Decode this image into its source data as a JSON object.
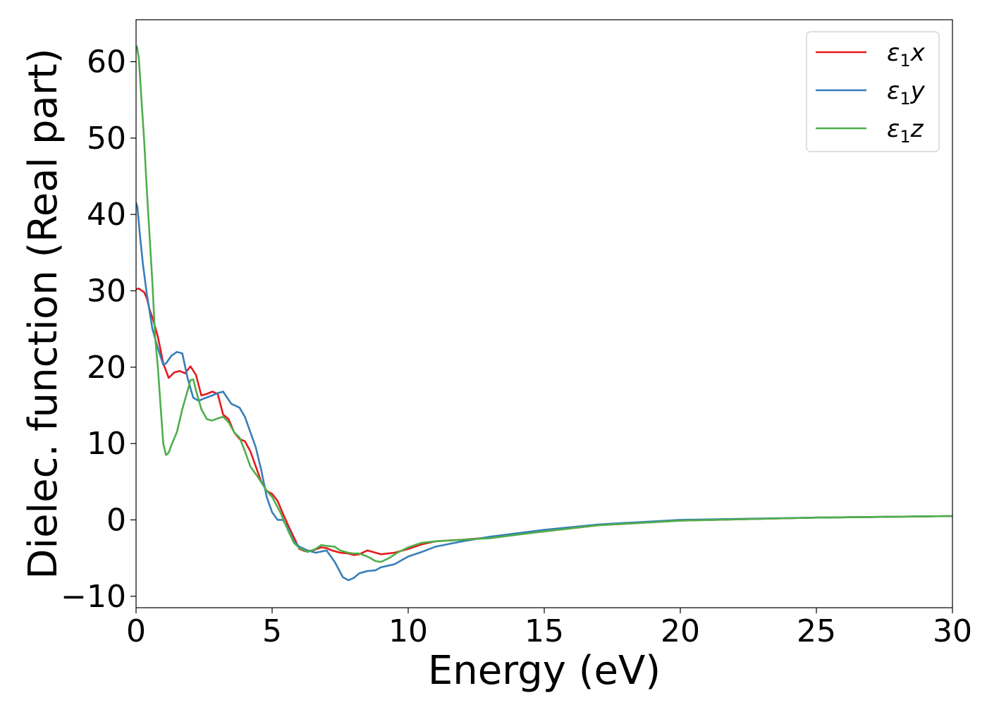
{
  "chart_data": {
    "type": "line",
    "xlabel": "Energy (eV)",
    "ylabel": "Dielec. function (Real part)",
    "xlim": [
      0,
      30
    ],
    "ylim": [
      -11.5,
      65.5
    ],
    "xticks": [
      0,
      5,
      10,
      15,
      20,
      25,
      30
    ],
    "yticks": [
      -10,
      0,
      10,
      20,
      30,
      40,
      50,
      60
    ],
    "grid": false,
    "legend_position": "top-right",
    "series": [
      {
        "name": "ε1x",
        "legend_base": "ε",
        "legend_sub": "1",
        "legend_tail": "x",
        "color": "#e41a1c",
        "x": [
          0,
          0.1,
          0.3,
          0.4,
          0.5,
          0.6,
          0.8,
          1.0,
          1.2,
          1.4,
          1.6,
          1.8,
          2.0,
          2.2,
          2.4,
          2.6,
          2.8,
          3.0,
          3.2,
          3.4,
          3.6,
          3.8,
          4.0,
          4.2,
          4.4,
          4.6,
          4.8,
          5.0,
          5.2,
          5.4,
          5.6,
          5.8,
          6.0,
          6.2,
          6.5,
          6.8,
          7.0,
          7.2,
          7.5,
          7.8,
          8.0,
          8.2,
          8.5,
          8.7,
          9.0,
          9.5,
          10.0,
          10.5,
          11.0,
          12.0,
          13.0,
          15.0,
          17.0,
          20.0,
          25.0,
          30.0
        ],
        "values": [
          30.2,
          30.3,
          29.8,
          29.0,
          27.5,
          26.5,
          24.0,
          20.5,
          18.6,
          19.3,
          19.5,
          19.2,
          20.1,
          19.0,
          16.3,
          16.5,
          16.8,
          16.5,
          13.8,
          13.2,
          11.5,
          10.6,
          10.3,
          9.0,
          7.0,
          5.0,
          3.8,
          3.4,
          2.5,
          0.8,
          -0.8,
          -2.3,
          -3.8,
          -4.1,
          -4.0,
          -3.6,
          -3.7,
          -4.0,
          -4.3,
          -4.4,
          -4.6,
          -4.5,
          -4.0,
          -4.2,
          -4.5,
          -4.3,
          -3.8,
          -3.2,
          -2.8,
          -2.6,
          -2.3,
          -1.5,
          -0.7,
          -0.1,
          0.3,
          0.5
        ]
      },
      {
        "name": "ε1y",
        "legend_base": "ε",
        "legend_sub": "1",
        "legend_tail": "y",
        "color": "#377eb8",
        "x": [
          0,
          0.05,
          0.15,
          0.25,
          0.4,
          0.6,
          0.8,
          1.0,
          1.1,
          1.3,
          1.5,
          1.7,
          1.9,
          2.1,
          2.3,
          2.5,
          2.8,
          3.0,
          3.2,
          3.5,
          3.8,
          4.0,
          4.2,
          4.4,
          4.6,
          4.8,
          5.0,
          5.2,
          5.4,
          5.6,
          5.8,
          6.0,
          6.3,
          6.6,
          7.0,
          7.3,
          7.6,
          7.8,
          8.0,
          8.2,
          8.5,
          8.8,
          9.0,
          9.5,
          10.0,
          10.5,
          11.0,
          12.0,
          13.0,
          15.0,
          17.0,
          20.0,
          25.0,
          30.0
        ],
        "values": [
          41.5,
          41.0,
          37.0,
          33.5,
          29.5,
          25.0,
          22.5,
          20.3,
          20.5,
          21.5,
          22.0,
          21.8,
          18.5,
          16.0,
          15.6,
          15.9,
          16.3,
          16.6,
          16.8,
          15.2,
          14.7,
          13.5,
          11.5,
          9.5,
          6.5,
          3.0,
          1.0,
          0.0,
          0.0,
          -1.2,
          -2.8,
          -3.5,
          -4.0,
          -4.3,
          -4.0,
          -5.5,
          -7.5,
          -7.9,
          -7.6,
          -7.0,
          -6.7,
          -6.6,
          -6.2,
          -5.8,
          -4.8,
          -4.2,
          -3.5,
          -2.8,
          -2.2,
          -1.3,
          -0.6,
          0.0,
          0.3,
          0.5
        ]
      },
      {
        "name": "ε1z",
        "legend_base": "ε",
        "legend_sub": "1",
        "legend_tail": "z",
        "color": "#4daf4a",
        "x": [
          0,
          0.03,
          0.1,
          0.2,
          0.3,
          0.4,
          0.5,
          0.6,
          0.7,
          0.8,
          0.9,
          1.0,
          1.1,
          1.2,
          1.3,
          1.5,
          1.7,
          1.9,
          2.0,
          2.1,
          2.2,
          2.4,
          2.6,
          2.8,
          3.0,
          3.2,
          3.4,
          3.6,
          3.8,
          4.0,
          4.2,
          4.5,
          4.8,
          5.0,
          5.3,
          5.6,
          5.8,
          6.0,
          6.3,
          6.6,
          6.8,
          7.0,
          7.3,
          7.5,
          7.8,
          8.0,
          8.2,
          8.5,
          8.8,
          9.0,
          9.3,
          9.6,
          10.0,
          10.5,
          11.0,
          12.0,
          13.0,
          15.0,
          17.0,
          20.0,
          25.0,
          30.0
        ],
        "values": [
          62.0,
          62.0,
          60.5,
          55.0,
          49.5,
          43.0,
          37.0,
          31.0,
          24.0,
          20.0,
          15.0,
          10.0,
          8.5,
          8.8,
          9.8,
          11.5,
          14.5,
          17.0,
          18.3,
          18.4,
          17.0,
          14.5,
          13.2,
          13.0,
          13.3,
          13.5,
          12.8,
          11.5,
          10.8,
          9.0,
          7.0,
          5.5,
          3.8,
          3.0,
          1.0,
          -1.5,
          -3.0,
          -3.7,
          -4.2,
          -3.8,
          -3.3,
          -3.4,
          -3.5,
          -4.0,
          -4.3,
          -4.4,
          -4.4,
          -4.8,
          -5.4,
          -5.5,
          -5.0,
          -4.3,
          -3.6,
          -3.0,
          -2.8,
          -2.6,
          -2.4,
          -1.5,
          -0.7,
          -0.1,
          0.3,
          0.5
        ]
      }
    ]
  }
}
